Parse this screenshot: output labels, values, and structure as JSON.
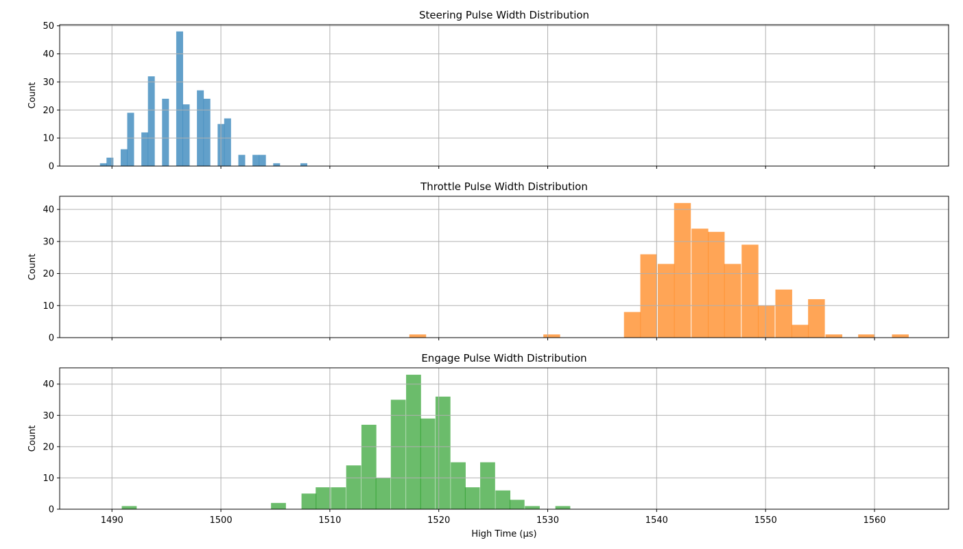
{
  "chart_data": [
    {
      "type": "bar",
      "title": "Steering Pulse Width Distribution",
      "xlabel": "",
      "ylabel": "Count",
      "xlim": [
        1485.2,
        1566.8
      ],
      "ylim": [
        0,
        50.4
      ],
      "yticks": [
        0,
        10,
        20,
        30,
        40,
        50
      ],
      "xticks": [
        1490,
        1500,
        1510,
        1520,
        1530,
        1540,
        1550,
        1560
      ],
      "show_xtick_labels": false,
      "grid": true,
      "color": "#1f77b4",
      "opacity": 0.7,
      "bin_width": 0.63,
      "bins": [
        {
          "x": 1488.9,
          "count": 1
        },
        {
          "x": 1489.5,
          "count": 3
        },
        {
          "x": 1490.8,
          "count": 6
        },
        {
          "x": 1491.4,
          "count": 19
        },
        {
          "x": 1492.7,
          "count": 12
        },
        {
          "x": 1493.3,
          "count": 32
        },
        {
          "x": 1494.6,
          "count": 24
        },
        {
          "x": 1495.9,
          "count": 48
        },
        {
          "x": 1496.5,
          "count": 22
        },
        {
          "x": 1497.8,
          "count": 27
        },
        {
          "x": 1498.4,
          "count": 24
        },
        {
          "x": 1499.7,
          "count": 15
        },
        {
          "x": 1500.3,
          "count": 17
        },
        {
          "x": 1501.6,
          "count": 4
        },
        {
          "x": 1502.9,
          "count": 4
        },
        {
          "x": 1503.5,
          "count": 4
        },
        {
          "x": 1504.8,
          "count": 1
        },
        {
          "x": 1507.3,
          "count": 1
        }
      ]
    },
    {
      "type": "bar",
      "title": "Throttle Pulse Width Distribution",
      "xlabel": "",
      "ylabel": "Count",
      "xlim": [
        1485.2,
        1566.8
      ],
      "ylim": [
        0,
        44.1
      ],
      "yticks": [
        0,
        10,
        20,
        30,
        40
      ],
      "xticks": [
        1490,
        1500,
        1510,
        1520,
        1530,
        1540,
        1550,
        1560
      ],
      "show_xtick_labels": false,
      "grid": true,
      "color": "#ff7f0e",
      "opacity": 0.7,
      "bin_width": 1.54,
      "bins": [
        {
          "x": 1517.3,
          "count": 1
        },
        {
          "x": 1529.6,
          "count": 1
        },
        {
          "x": 1537.0,
          "count": 8
        },
        {
          "x": 1538.5,
          "count": 26
        },
        {
          "x": 1540.1,
          "count": 23
        },
        {
          "x": 1541.6,
          "count": 42
        },
        {
          "x": 1543.2,
          "count": 34
        },
        {
          "x": 1544.7,
          "count": 33
        },
        {
          "x": 1546.2,
          "count": 23
        },
        {
          "x": 1547.8,
          "count": 29
        },
        {
          "x": 1549.3,
          "count": 10
        },
        {
          "x": 1550.9,
          "count": 15
        },
        {
          "x": 1552.4,
          "count": 4
        },
        {
          "x": 1553.9,
          "count": 12
        },
        {
          "x": 1555.5,
          "count": 1
        },
        {
          "x": 1558.5,
          "count": 1
        },
        {
          "x": 1561.6,
          "count": 1
        }
      ]
    },
    {
      "type": "bar",
      "title": "Engage Pulse Width Distribution",
      "xlabel": "High Time (µs)",
      "ylabel": "Count",
      "xlim": [
        1485.2,
        1566.8
      ],
      "ylim": [
        0,
        45.2
      ],
      "yticks": [
        0,
        10,
        20,
        30,
        40
      ],
      "xticks": [
        1490,
        1500,
        1510,
        1520,
        1530,
        1540,
        1550,
        1560
      ],
      "show_xtick_labels": true,
      "grid": true,
      "color": "#2ca02c",
      "opacity": 0.7,
      "bin_width": 1.37,
      "bins": [
        {
          "x": 1490.9,
          "count": 1
        },
        {
          "x": 1504.6,
          "count": 2
        },
        {
          "x": 1507.4,
          "count": 5
        },
        {
          "x": 1508.7,
          "count": 7
        },
        {
          "x": 1510.1,
          "count": 7
        },
        {
          "x": 1511.5,
          "count": 14
        },
        {
          "x": 1512.9,
          "count": 27
        },
        {
          "x": 1514.2,
          "count": 10
        },
        {
          "x": 1515.6,
          "count": 35
        },
        {
          "x": 1517.0,
          "count": 43
        },
        {
          "x": 1518.3,
          "count": 29
        },
        {
          "x": 1519.7,
          "count": 36
        },
        {
          "x": 1521.1,
          "count": 15
        },
        {
          "x": 1522.4,
          "count": 7
        },
        {
          "x": 1523.8,
          "count": 15
        },
        {
          "x": 1525.2,
          "count": 6
        },
        {
          "x": 1526.5,
          "count": 3
        },
        {
          "x": 1527.9,
          "count": 1
        },
        {
          "x": 1530.7,
          "count": 1
        }
      ]
    }
  ]
}
